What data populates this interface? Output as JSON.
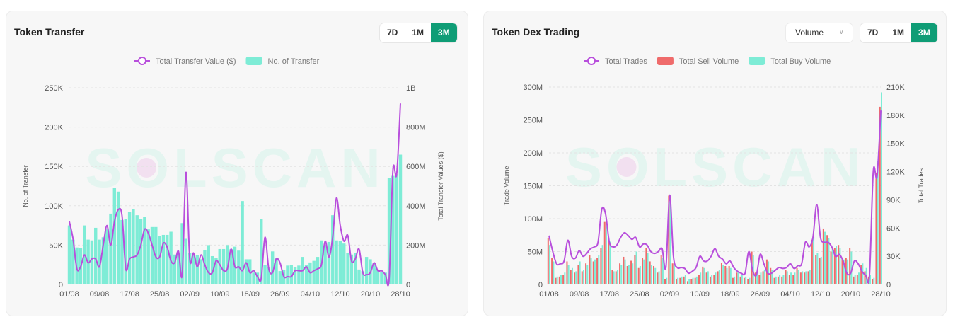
{
  "colors": {
    "accent": "#0f9d76",
    "line": "#b84fdc",
    "bar": "#7eecd6",
    "sell": "#ef6b6b",
    "buy": "#7eecd6"
  },
  "watermark": "SOLSCAN",
  "transfer": {
    "title": "Token Transfer",
    "ranges": [
      "7D",
      "1M",
      "3M"
    ],
    "active_range": "3M"
  },
  "dex": {
    "title": "Token Dex Trading",
    "select_value": "Volume",
    "ranges": [
      "7D",
      "1M",
      "3M"
    ],
    "active_range": "3M"
  },
  "chart_data": [
    {
      "type": "bar+line",
      "legend": [
        "Total Transfer Value ($)",
        "No. of Transfer"
      ],
      "legend_position": "top",
      "ylabel": "No. of Transfer",
      "y2label": "Total Transfer Values ($)",
      "ylim": [
        0,
        250000
      ],
      "y2lim": [
        0,
        1000000000
      ],
      "yticks": [
        "0",
        "50K",
        "100K",
        "150K",
        "200K",
        "250K"
      ],
      "y2ticks": [
        "0",
        "200M",
        "400M",
        "600M",
        "800M",
        "1B"
      ],
      "xticks": [
        "01/08",
        "09/08",
        "17/08",
        "25/08",
        "02/09",
        "10/09",
        "18/09",
        "26/09",
        "04/10",
        "12/10",
        "20/10",
        "28/10"
      ],
      "grid": true,
      "series": [
        {
          "name": "No. of Transfer",
          "type": "bar",
          "unit": "K",
          "values": [
            75,
            57,
            47,
            46,
            75,
            57,
            56,
            72,
            57,
            60,
            70,
            90,
            123,
            118,
            82,
            83,
            92,
            96,
            88,
            83,
            86,
            70,
            73,
            73,
            62,
            63,
            63,
            67,
            38,
            40,
            78,
            58,
            40,
            37,
            37,
            32,
            44,
            50,
            36,
            34,
            45,
            45,
            50,
            45,
            48,
            43,
            106,
            32,
            32,
            15,
            15,
            83,
            25,
            22,
            42,
            34,
            17,
            18,
            24,
            25,
            22,
            24,
            35,
            25,
            28,
            30,
            35,
            56,
            50,
            54,
            88,
            56,
            55,
            52,
            40,
            38,
            40,
            19,
            17,
            35,
            32,
            27,
            18,
            16,
            15,
            135,
            138,
            140,
            165
          ]
        },
        {
          "name": "Total Transfer Value ($)",
          "type": "line",
          "unit": "M",
          "values": [
            320,
            230,
            80,
            90,
            150,
            110,
            130,
            130,
            90,
            200,
            300,
            200,
            320,
            380,
            350,
            80,
            130,
            140,
            150,
            200,
            280,
            260,
            200,
            140,
            140,
            210,
            190,
            120,
            110,
            170,
            50,
            570,
            130,
            160,
            90,
            150,
            100,
            60,
            60,
            120,
            100,
            70,
            80,
            180,
            90,
            90,
            70,
            110,
            60,
            70,
            40,
            30,
            240,
            80,
            60,
            130,
            110,
            40,
            40,
            40,
            70,
            70,
            70,
            90,
            60,
            70,
            80,
            100,
            220,
            140,
            240,
            440,
            300,
            220,
            250,
            120,
            130,
            180,
            60,
            50,
            60,
            110,
            70,
            70,
            50,
            30,
            580,
            560,
            920
          ]
        }
      ]
    },
    {
      "type": "bar+line",
      "legend": [
        "Total Trades",
        "Total Sell Volume",
        "Total Buy Volume"
      ],
      "legend_position": "top",
      "ylabel": "Trade Volume",
      "y2label": "Total Trades",
      "ylim": [
        0,
        300000000
      ],
      "y2lim": [
        0,
        210000
      ],
      "yticks": [
        "0",
        "50M",
        "100M",
        "150M",
        "200M",
        "250M",
        "300M"
      ],
      "y2ticks": [
        "0",
        "30K",
        "60K",
        "90K",
        "120K",
        "150K",
        "180K",
        "210K"
      ],
      "xticks": [
        "01/08",
        "09/08",
        "17/08",
        "25/08",
        "02/09",
        "10/09",
        "18/09",
        "26/09",
        "04/10",
        "12/10",
        "20/10",
        "28/10"
      ],
      "grid": true,
      "series": [
        {
          "name": "Total Sell Volume",
          "type": "bar",
          "unit": "M",
          "values": [
            70,
            40,
            10,
            12,
            15,
            35,
            22,
            18,
            30,
            20,
            32,
            45,
            35,
            40,
            55,
            95,
            70,
            22,
            20,
            32,
            42,
            28,
            36,
            45,
            25,
            40,
            55,
            35,
            28,
            18,
            45,
            8,
            135,
            32,
            8,
            10,
            12,
            5,
            8,
            10,
            15,
            27,
            18,
            12,
            15,
            20,
            33,
            28,
            28,
            10,
            18,
            12,
            10,
            8,
            50,
            18,
            15,
            20,
            38,
            25,
            10,
            12,
            12,
            22,
            15,
            15,
            25,
            18,
            18,
            20,
            68,
            45,
            40,
            85,
            75,
            50,
            55,
            60,
            40,
            40,
            55,
            12,
            15,
            30,
            20,
            12,
            8,
            170,
            270
          ]
        },
        {
          "name": "Total Buy Volume",
          "type": "bar",
          "unit": "M",
          "values": [
            60,
            35,
            12,
            14,
            18,
            30,
            25,
            20,
            35,
            22,
            30,
            40,
            38,
            45,
            60,
            88,
            65,
            20,
            22,
            30,
            38,
            30,
            32,
            50,
            28,
            38,
            48,
            30,
            25,
            20,
            40,
            10,
            125,
            30,
            10,
            12,
            14,
            8,
            10,
            12,
            18,
            25,
            20,
            14,
            18,
            22,
            30,
            25,
            25,
            12,
            20,
            14,
            12,
            10,
            45,
            20,
            18,
            22,
            35,
            22,
            12,
            14,
            14,
            20,
            18,
            18,
            22,
            20,
            20,
            22,
            72,
            48,
            42,
            80,
            70,
            55,
            58,
            55,
            38,
            38,
            50,
            14,
            18,
            32,
            25,
            15,
            10,
            188,
            292
          ]
        },
        {
          "name": "Total Trades",
          "type": "line",
          "unit": "K",
          "values": [
            52,
            35,
            22,
            22,
            25,
            47,
            30,
            28,
            36,
            30,
            33,
            38,
            40,
            45,
            80,
            75,
            45,
            40,
            42,
            50,
            55,
            52,
            48,
            50,
            40,
            43,
            42,
            35,
            33,
            35,
            38,
            18,
            95,
            30,
            18,
            18,
            17,
            12,
            14,
            18,
            30,
            25,
            25,
            30,
            38,
            30,
            27,
            22,
            25,
            18,
            14,
            12,
            12,
            35,
            15,
            10,
            32,
            22,
            12,
            12,
            15,
            18,
            17,
            18,
            22,
            17,
            20,
            22,
            45,
            40,
            50,
            85,
            50,
            45,
            45,
            40,
            30,
            32,
            25,
            12,
            12,
            25,
            22,
            14,
            10,
            10,
            120,
            115,
            185
          ]
        }
      ]
    }
  ]
}
